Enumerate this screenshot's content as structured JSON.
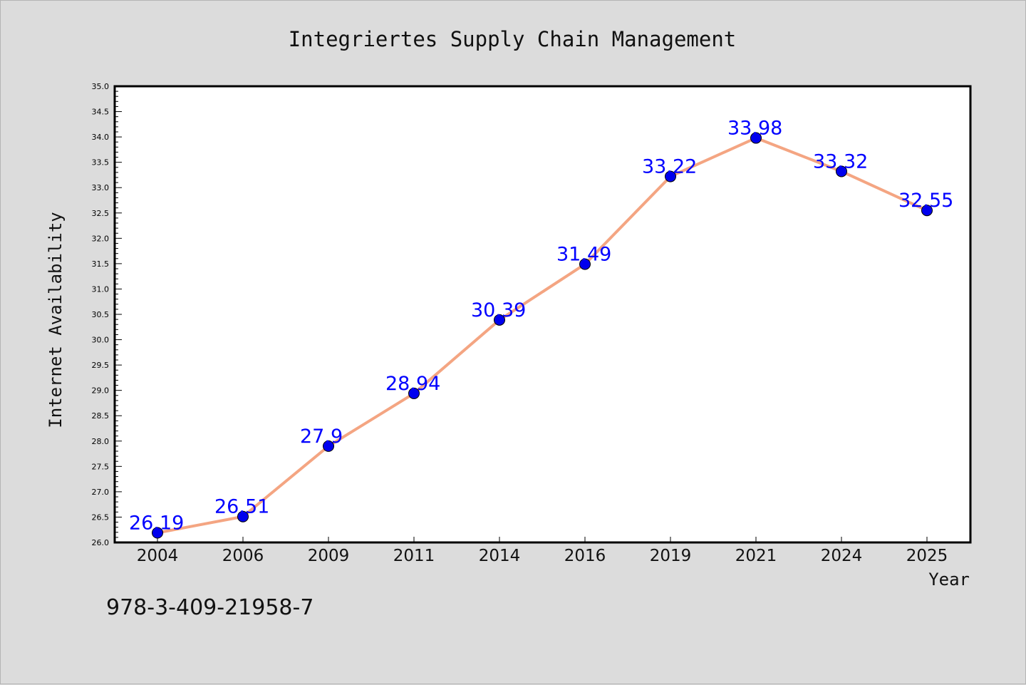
{
  "chart_data": {
    "type": "line",
    "title": "Integriertes Supply Chain Management",
    "xlabel": "Year",
    "ylabel": "Internet Availability",
    "categories": [
      "2004",
      "2006",
      "2009",
      "2011",
      "2014",
      "2016",
      "2019",
      "2021",
      "2024",
      "2025"
    ],
    "series": [
      {
        "values": [
          26.19,
          26.51,
          27.9,
          28.94,
          30.39,
          31.49,
          33.22,
          33.98,
          33.32,
          32.55
        ],
        "labels": [
          "26.19",
          "26.51",
          "27.9",
          "28.94",
          "30.39",
          "31.49",
          "33.22",
          "33.98",
          "33.32",
          "32.55"
        ],
        "line_color": "#f4a582",
        "marker_color": "#0000ee",
        "label_color": "#0000ff"
      }
    ],
    "ylim": [
      26.0,
      35.0
    ],
    "y_ticks": [
      "26.0",
      "26.5",
      "27.0",
      "27.5",
      "28.0",
      "28.5",
      "29.0",
      "29.5",
      "30.0",
      "30.5",
      "31.0",
      "31.5",
      "32.0",
      "32.5",
      "33.0",
      "33.5",
      "34.0",
      "34.5",
      "35.0"
    ],
    "grid": false,
    "legend": "none",
    "background": "#dcdcdc",
    "plot_background": "#ffffff"
  },
  "footer": {
    "isbn": "978-3-409-21958-7"
  }
}
